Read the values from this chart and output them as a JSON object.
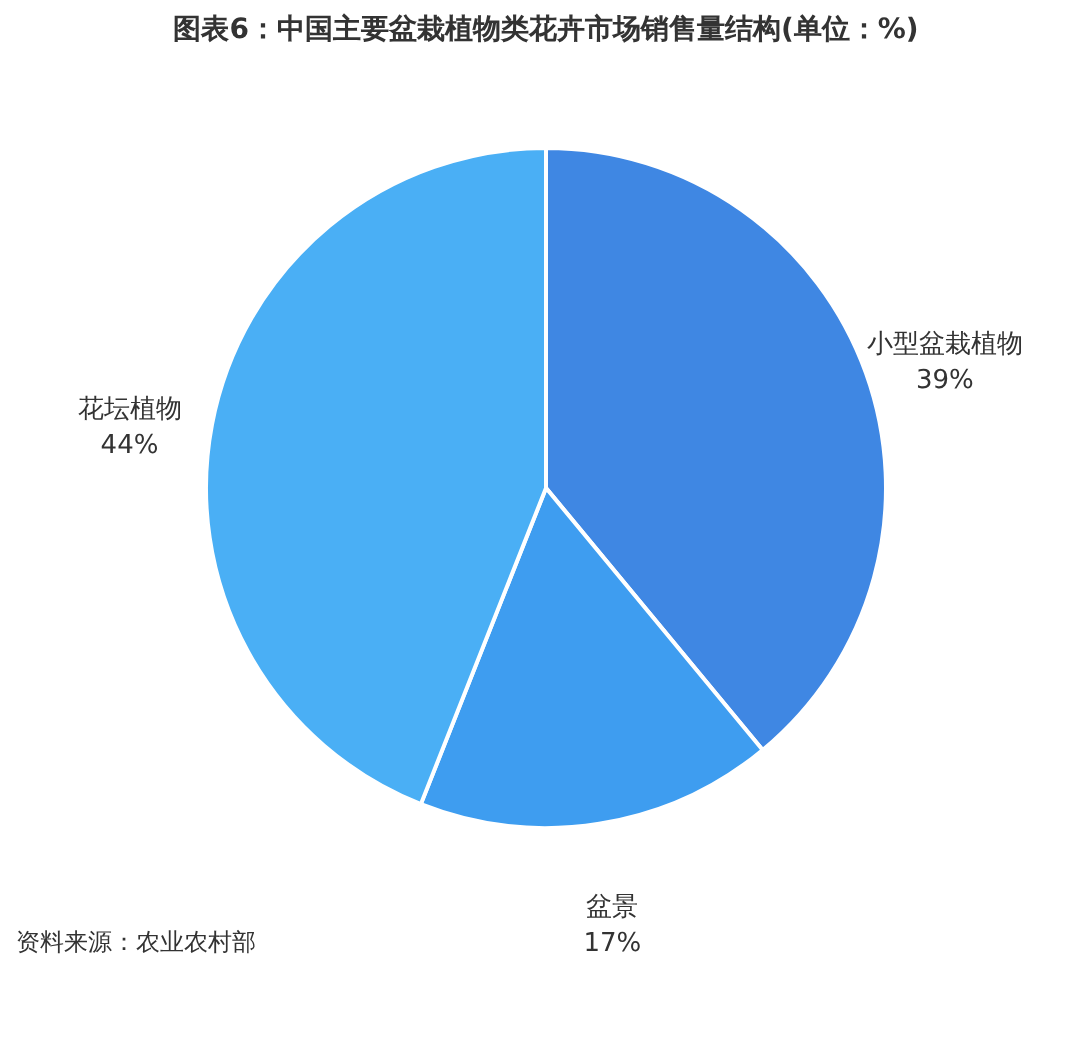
{
  "chart_data": {
    "type": "pie",
    "title": "图表6：中国主要盆栽植物类花卉市场销售量结构(单位：%)",
    "categories": [
      "小型盆栽植物",
      "盆景",
      "花坛植物"
    ],
    "values": [
      39,
      17,
      44
    ],
    "value_labels": [
      "39%",
      "17%",
      "44%"
    ],
    "colors": [
      "#3f87e3",
      "#3e9df0",
      "#4aaff5"
    ],
    "annotations": [
      "资料来源：农业农村部"
    ],
    "legend": false
  }
}
